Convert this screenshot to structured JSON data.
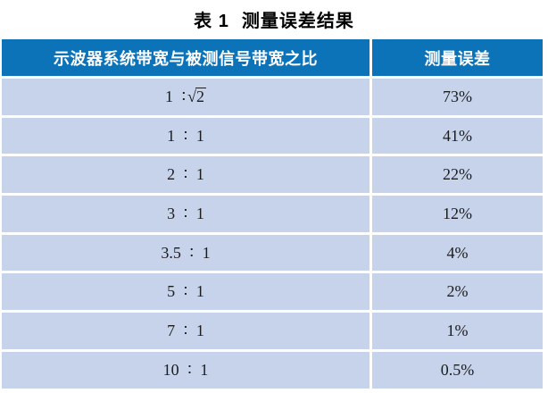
{
  "title": {
    "index": "表 1",
    "text": "测量误差结果"
  },
  "table": {
    "headers": [
      "示波器系统带宽与被测信号带宽之比",
      "测量误差"
    ],
    "rows": [
      {
        "ratio": "1 ∶ √2",
        "error": "73%"
      },
      {
        "ratio": "1 ∶ 1",
        "error": "41%"
      },
      {
        "ratio": "2 ∶ 1",
        "error": "22%"
      },
      {
        "ratio": "3 ∶ 1",
        "error": "12%"
      },
      {
        "ratio": "3.5 ∶ 1",
        "error": "4%"
      },
      {
        "ratio": "5 ∶ 1",
        "error": "2%"
      },
      {
        "ratio": "7 ∶ 1",
        "error": "1%"
      },
      {
        "ratio": "10 ∶ 1",
        "error": "0.5%"
      }
    ],
    "colors": {
      "header_bg": "#0d73b8",
      "row_bg": "#c6d3ea",
      "header_text": "#ffffff",
      "cell_text": "#1c1c1c"
    }
  },
  "chart_data": {
    "type": "table",
    "title": "表 1 测量误差结果",
    "columns": [
      "示波器系统带宽与被测信号带宽之比",
      "测量误差"
    ],
    "rows": [
      [
        "1 ∶ √2",
        "73%"
      ],
      [
        "1 ∶ 1",
        "41%"
      ],
      [
        "2 ∶ 1",
        "22%"
      ],
      [
        "3 ∶ 1",
        "12%"
      ],
      [
        "3.5 ∶ 1",
        "4%"
      ],
      [
        "5 ∶ 1",
        "2%"
      ],
      [
        "7 ∶ 1",
        "1%"
      ],
      [
        "10 ∶ 1",
        "0.5%"
      ]
    ]
  }
}
